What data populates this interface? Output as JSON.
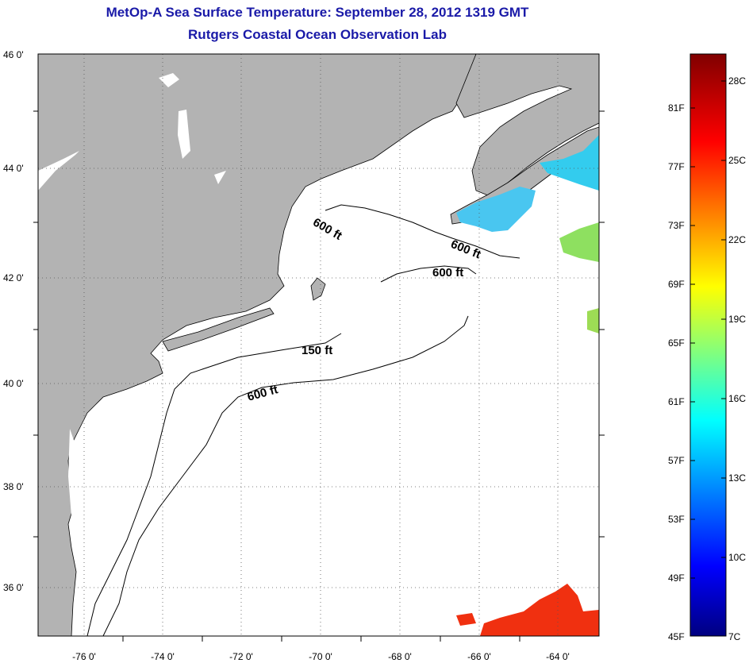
{
  "title": "MetOp-A Sea Surface Temperature:  September 28, 2012 1319 GMT",
  "subtitle": "Rutgers Coastal Ocean Observation Lab",
  "map": {
    "lat_labels": [
      "46 0'",
      "44 0'",
      "42 0'",
      "40 0'",
      "38 0'",
      "36 0'"
    ],
    "lon_labels": [
      "-76 0'",
      "-74 0'",
      "-72 0'",
      "-70 0'",
      "-68 0'",
      "-66 0'",
      "-64 0'"
    ],
    "isobath_labels": [
      "600 ft",
      "600 ft",
      "600 ft",
      "150 ft",
      "600 ft"
    ],
    "land_color": "#b3b3b3",
    "water_color": "#ffffff"
  },
  "colorbar": {
    "f_labels": [
      "81F",
      "77F",
      "73F",
      "69F",
      "65F",
      "61F",
      "57F",
      "53F",
      "49F",
      "45F"
    ],
    "c_labels": [
      "28C",
      "25C",
      "22C",
      "19C",
      "16C",
      "13C",
      "10C",
      "7C"
    ],
    "colors": [
      "#000080",
      "#0000ff",
      "#0080ff",
      "#00ffff",
      "#80ff80",
      "#ffff00",
      "#ff8000",
      "#ff0000",
      "#800000"
    ]
  }
}
